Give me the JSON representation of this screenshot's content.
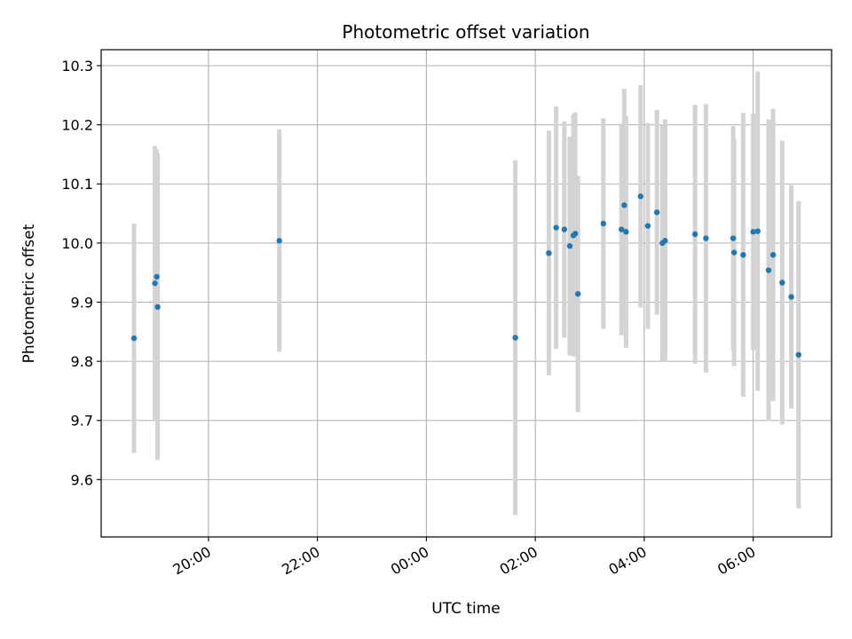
{
  "chart_data": {
    "type": "scatter",
    "title": "Photometric offset variation",
    "xlabel": "UTC time",
    "ylabel": "Photometric offset",
    "x_axis": {
      "kind": "time",
      "tick_hours": [
        20,
        22,
        24,
        26,
        28,
        30
      ],
      "tick_labels": [
        "20:00",
        "22:00",
        "00:00",
        "02:00",
        "04:00",
        "06:00"
      ],
      "range_hours": [
        18.03,
        31.44
      ]
    },
    "y_axis": {
      "ticks": [
        9.6,
        9.7,
        9.8,
        9.9,
        10.0,
        10.1,
        10.2,
        10.3
      ],
      "tick_labels": [
        "9.6",
        "9.7",
        "9.8",
        "9.9",
        "10.0",
        "10.1",
        "10.2",
        "10.3"
      ],
      "ylim": [
        9.503,
        10.327
      ]
    },
    "grid": true,
    "colors": {
      "point": "#1f77b4",
      "errorbar": "#d3d3d3",
      "grid": "#b0b0b0"
    },
    "series": [
      {
        "points": [
          {
            "t": "18:38",
            "y": 9.839,
            "err": 0.194
          },
          {
            "t": "19:01",
            "y": 9.932,
            "err": 0.232
          },
          {
            "t": "19:03",
            "y": 9.943,
            "err": 0.215
          },
          {
            "t": "19:04",
            "y": 9.892,
            "err": 0.259
          },
          {
            "t": "21:18",
            "y": 10.004,
            "err": 0.188
          },
          {
            "t": "01:38",
            "y": 9.84,
            "err": 0.3
          },
          {
            "t": "02:15",
            "y": 9.983,
            "err": 0.207
          },
          {
            "t": "02:23",
            "y": 10.026,
            "err": 0.205
          },
          {
            "t": "02:32",
            "y": 10.023,
            "err": 0.183
          },
          {
            "t": "02:38",
            "y": 9.995,
            "err": 0.185
          },
          {
            "t": "02:42",
            "y": 10.013,
            "err": 0.205
          },
          {
            "t": "02:44",
            "y": 10.016,
            "err": 0.205
          },
          {
            "t": "02:47",
            "y": 9.914,
            "err": 0.2
          },
          {
            "t": "03:15",
            "y": 10.033,
            "err": 0.178
          },
          {
            "t": "03:35",
            "y": 10.023,
            "err": 0.179
          },
          {
            "t": "03:38",
            "y": 10.064,
            "err": 0.197
          },
          {
            "t": "03:40",
            "y": 10.019,
            "err": 0.196
          },
          {
            "t": "03:56",
            "y": 10.079,
            "err": 0.188
          },
          {
            "t": "04:04",
            "y": 10.029,
            "err": 0.174
          },
          {
            "t": "04:14",
            "y": 10.052,
            "err": 0.173
          },
          {
            "t": "04:20",
            "y": 10.0,
            "err": 0.2
          },
          {
            "t": "04:23",
            "y": 10.004,
            "err": 0.205
          },
          {
            "t": "04:56",
            "y": 10.015,
            "err": 0.219
          },
          {
            "t": "05:08",
            "y": 10.008,
            "err": 0.227
          },
          {
            "t": "05:38",
            "y": 10.008,
            "err": 0.19
          },
          {
            "t": "05:39",
            "y": 9.984,
            "err": 0.192
          },
          {
            "t": "05:49",
            "y": 9.98,
            "err": 0.24
          },
          {
            "t": "06:00",
            "y": 10.019,
            "err": 0.2
          },
          {
            "t": "06:05",
            "y": 10.02,
            "err": 0.27
          },
          {
            "t": "06:17",
            "y": 9.954,
            "err": 0.255
          },
          {
            "t": "06:22",
            "y": 9.98,
            "err": 0.247
          },
          {
            "t": "06:32",
            "y": 9.933,
            "err": 0.24
          },
          {
            "t": "06:42",
            "y": 9.909,
            "err": 0.189
          },
          {
            "t": "06:50",
            "y": 9.811,
            "err": 0.26
          }
        ]
      }
    ]
  }
}
